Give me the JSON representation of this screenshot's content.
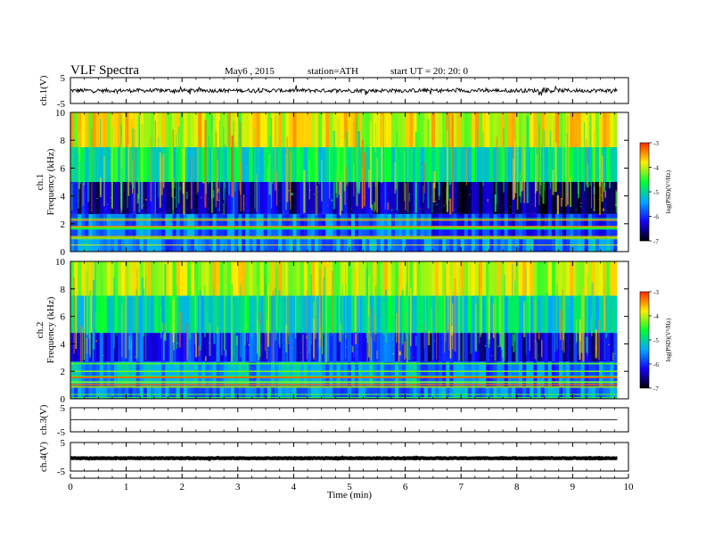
{
  "header": {
    "title": "VLF Spectra",
    "date": "May6  , 2015",
    "station": "station=ATH",
    "start_ut": "start  UT  =   20: 20: 0"
  },
  "colors": {
    "colormap": [
      "#000000",
      "#1400ff",
      "#00aaff",
      "#00ff33",
      "#ffee00",
      "#ff2600",
      "#ffffff"
    ],
    "trace": "#000000"
  },
  "chart_data": [
    {
      "type": "line",
      "name": "ch1-timeseries",
      "ylabel": "ch.1(V)",
      "ylim": [
        -5,
        5
      ],
      "yticks": [
        5,
        -5
      ],
      "xlim": [
        0,
        10
      ],
      "approx_level": 0,
      "approx_amplitude": 1.5
    },
    {
      "type": "heatmap",
      "name": "ch1-spectrogram",
      "ylabel_channel": "ch.1",
      "ylabel": "Frequency  (kHz)",
      "ylim": [
        0,
        10
      ],
      "yticks": [
        0,
        2,
        4,
        6,
        8,
        10
      ],
      "xlim": [
        0,
        10
      ],
      "data_end_min": 9.8,
      "colorbar": {
        "label": "log(PSD)(V²/Hz)",
        "range": [
          -7,
          -3
        ],
        "ticks": [
          -3,
          -4,
          -5,
          -6,
          -7
        ]
      },
      "bands": [
        {
          "f_from": 0,
          "f_to": 0.9,
          "level": -5.6,
          "note": "horizontal lines"
        },
        {
          "f_from": 0.9,
          "f_to": 2.7,
          "level": -5.7
        },
        {
          "f_from": 2.7,
          "f_to": 5.0,
          "level": -6.4
        },
        {
          "f_from": 5.0,
          "f_to": 7.5,
          "level": -4.9
        },
        {
          "f_from": 7.5,
          "f_to": 10,
          "level": -3.9
        }
      ],
      "step_change_min": 6.25
    },
    {
      "type": "heatmap",
      "name": "ch2-spectrogram",
      "ylabel_channel": "ch.2",
      "ylabel": "Frequency  (kHz)",
      "ylim": [
        0,
        10
      ],
      "yticks": [
        0,
        2,
        4,
        6,
        8,
        10
      ],
      "xlim": [
        0,
        10
      ],
      "data_end_min": 9.8,
      "colorbar": {
        "label": "log(PSD)(V²/Hz)",
        "range": [
          -7,
          -3
        ],
        "ticks": [
          -3,
          -4,
          -5,
          -6,
          -7
        ]
      },
      "bands": [
        {
          "f_from": 0,
          "f_to": 0.9,
          "level": -5.6,
          "note": "horizontal lines"
        },
        {
          "f_from": 0.9,
          "f_to": 2.7,
          "level": -5.4
        },
        {
          "f_from": 2.7,
          "f_to": 4.8,
          "level": -6.0
        },
        {
          "f_from": 4.8,
          "f_to": 7.5,
          "level": -5.0
        },
        {
          "f_from": 7.5,
          "f_to": 10,
          "level": -4.0
        }
      ],
      "step_change_min": 6.25
    },
    {
      "type": "line",
      "name": "ch3-timeseries",
      "ylabel": "ch.3(V)",
      "ylim": [
        -5,
        5
      ],
      "yticks": [
        5,
        -5
      ],
      "xlim": [
        0,
        10
      ],
      "approx_level": 0,
      "approx_amplitude": 0.1
    },
    {
      "type": "line",
      "name": "ch4-timeseries",
      "ylabel": "ch.4(V)",
      "ylim": [
        -5,
        5
      ],
      "yticks": [
        5,
        -5
      ],
      "xlim": [
        0,
        10
      ],
      "approx_level": -0.5,
      "approx_amplitude": 0.2
    }
  ],
  "x_axis": {
    "label": "Time  (min)",
    "ticks": [
      "0",
      "1",
      "2",
      "3",
      "4",
      "5",
      "6",
      "7",
      "8",
      "9",
      "10"
    ]
  }
}
